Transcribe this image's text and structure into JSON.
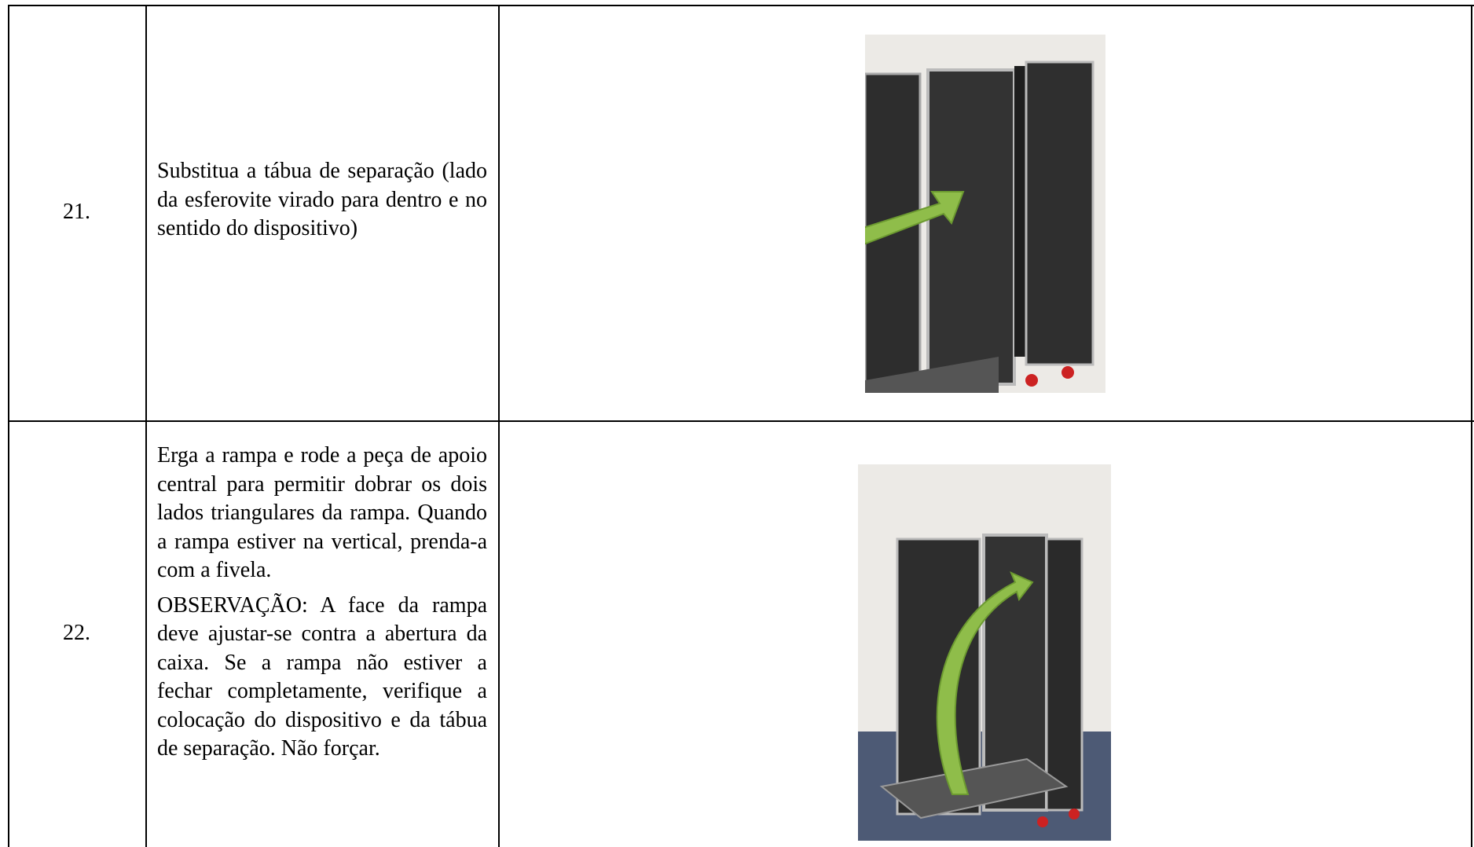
{
  "table": {
    "rows": [
      {
        "number": "21.",
        "text": "Substitua a tábua de separação (lado da esferovite virado para dentro e no sentido do dispositivo)"
      },
      {
        "number": "22.",
        "paragraphs": [
          "Erga a rampa e rode a peça de apoio central para permitir dobrar os dois lados triangulares da rampa. Quando a rampa estiver na vertical, prenda-a com a fivela.",
          "OBSERVAÇÃO: A face da rampa deve ajustar-se contra a abertura da caixa. Se a rampa não estiver a fechar completamente, verifique a colocação do dispositivo e da tábua de separação. Não forçar."
        ]
      }
    ]
  }
}
